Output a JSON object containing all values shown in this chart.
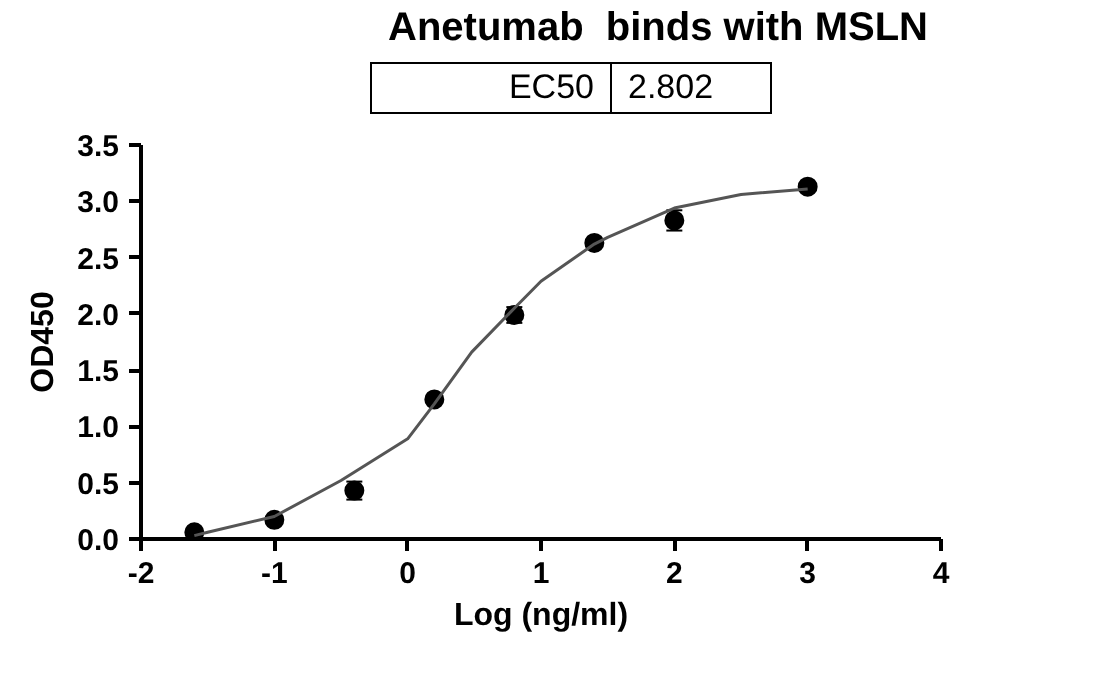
{
  "chart_data": {
    "type": "scatter",
    "title": "Anetumab  binds with MSLN",
    "xlabel": "Log (ng/ml)",
    "ylabel": "OD450",
    "annotations": [
      "EC50",
      "2.802"
    ],
    "xlim": [
      -2,
      4
    ],
    "xticks": [
      -2,
      -1,
      0,
      1,
      2,
      3,
      4
    ],
    "ylim": [
      0,
      3.5
    ],
    "yticks": [
      {
        "value": 0,
        "label": "0.0"
      },
      {
        "value": 0.5,
        "label": "0.5"
      },
      {
        "value": 1,
        "label": "1.0"
      },
      {
        "value": 1.5,
        "label": "1.5"
      },
      {
        "value": 2,
        "label": "2.0"
      },
      {
        "value": 2.5,
        "label": "2.5"
      },
      {
        "value": 3,
        "label": "3.0"
      },
      {
        "value": 3.5,
        "label": "3.5"
      }
    ],
    "grid": false,
    "series": [
      {
        "marker": "circle",
        "color": "#000000",
        "x": [
          -1.6,
          -1.0,
          -0.4,
          0.2,
          0.8,
          1.4,
          2.0,
          3.0
        ],
        "values": [
          0.06,
          0.17,
          0.43,
          1.24,
          1.99,
          2.63,
          2.83,
          3.13
        ],
        "errors": [
          null,
          null,
          0.08,
          null,
          0.07,
          null,
          0.09,
          null
        ]
      },
      {
        "type": "line",
        "marker": "none",
        "color": "#555555",
        "x": [
          -1.6,
          -1.5,
          -1.0,
          -0.5,
          0.0,
          0.2,
          0.48,
          0.8,
          1.0,
          1.4,
          1.5,
          2.0,
          2.5,
          3.0
        ],
        "values": [
          0.03,
          0.06,
          0.2,
          0.52,
          0.89,
          1.2,
          1.66,
          2.05,
          2.29,
          2.62,
          2.68,
          2.94,
          3.06,
          3.11
        ]
      }
    ]
  }
}
